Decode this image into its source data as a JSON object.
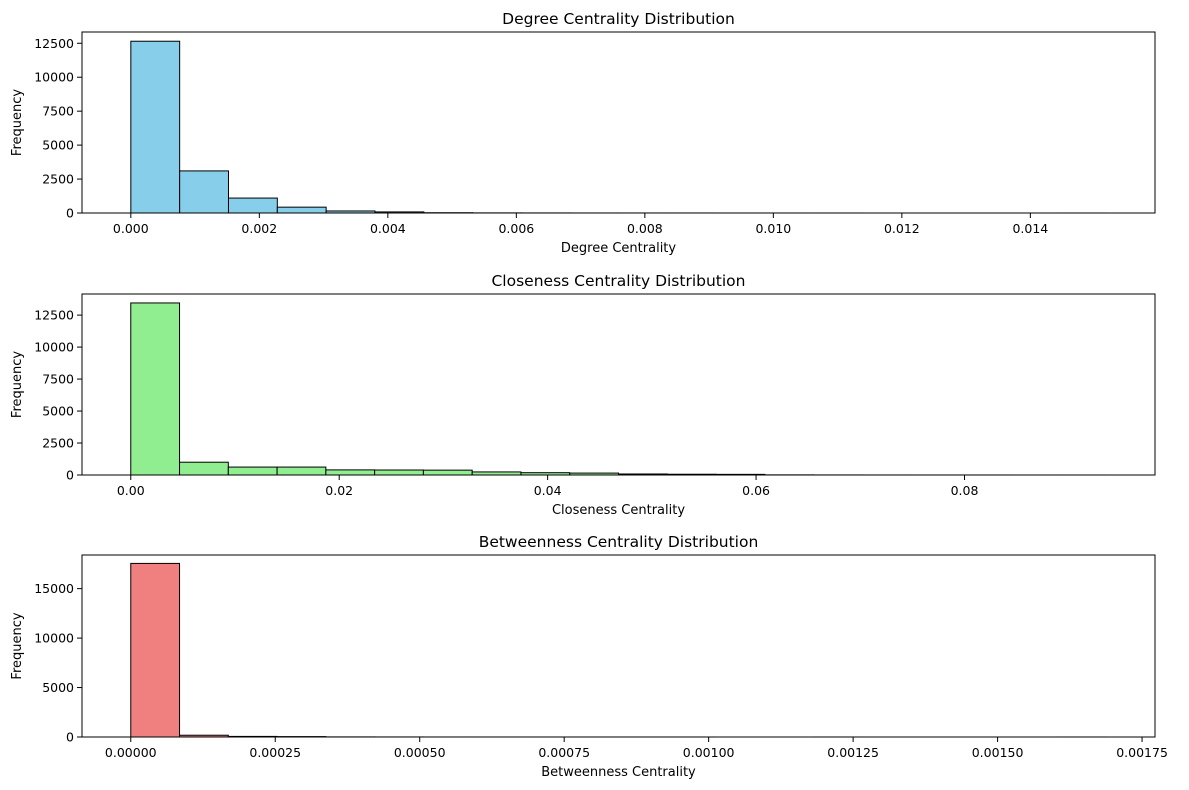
{
  "chart_data": [
    {
      "type": "bar",
      "title": "Degree Centrality Distribution",
      "xlabel": "Degree Centrality",
      "ylabel": "Frequency",
      "color": "#87ceeb",
      "edge_color": "#000000",
      "xlim": [
        -0.00076,
        0.01594
      ],
      "ylim": [
        0,
        13330
      ],
      "xticks": [
        0,
        0.002,
        0.004,
        0.006,
        0.008,
        0.01,
        0.012,
        0.014
      ],
      "xtick_labels": [
        "0.000",
        "0.002",
        "0.004",
        "0.006",
        "0.008",
        "0.010",
        "0.012",
        "0.014"
      ],
      "yticks": [
        0,
        2500,
        5000,
        7500,
        10000,
        12500
      ],
      "ytick_labels": [
        "0",
        "2500",
        "5000",
        "7500",
        "10000",
        "12500"
      ],
      "bin_edges": [
        0,
        0.00076,
        0.00152,
        0.00228,
        0.00304,
        0.0038,
        0.00456,
        0.00532,
        0.00608,
        0.00684,
        0.0076,
        0.00836,
        0.00912,
        0.00988,
        0.01064,
        0.0114,
        0.01216,
        0.01292,
        0.01368,
        0.01444,
        0.0152
      ],
      "values": [
        12650,
        3100,
        1100,
        430,
        150,
        80,
        20,
        8,
        5,
        3,
        2,
        2,
        1,
        1,
        1,
        0,
        0,
        0,
        0,
        1
      ],
      "grid": false,
      "legend": false
    },
    {
      "type": "bar",
      "title": "Closeness Centrality Distribution",
      "xlabel": "Closeness Centrality",
      "ylabel": "Frequency",
      "color": "#90ee90",
      "edge_color": "#000000",
      "xlim": [
        -0.00468,
        0.09828
      ],
      "ylim": [
        0,
        14150
      ],
      "xticks": [
        0,
        0.02,
        0.04,
        0.06,
        0.08
      ],
      "xtick_labels": [
        "0.00",
        "0.02",
        "0.04",
        "0.06",
        "0.08"
      ],
      "yticks": [
        0,
        2500,
        5000,
        7500,
        10000,
        12500
      ],
      "ytick_labels": [
        "0",
        "2500",
        "5000",
        "7500",
        "10000",
        "12500"
      ],
      "bin_edges": [
        0,
        0.00468,
        0.00936,
        0.01404,
        0.01872,
        0.0234,
        0.02808,
        0.03276,
        0.03744,
        0.04212,
        0.0468,
        0.05148,
        0.05616,
        0.06084,
        0.06552,
        0.0702,
        0.07488,
        0.07956,
        0.08424,
        0.08892,
        0.0936
      ],
      "values": [
        13450,
        1000,
        620,
        620,
        400,
        390,
        380,
        240,
        180,
        150,
        80,
        60,
        50,
        10,
        5,
        3,
        2,
        2,
        1,
        1
      ],
      "grid": false,
      "legend": false
    },
    {
      "type": "bar",
      "title": "Betweenness Centrality Distribution",
      "xlabel": "Betweenness Centrality",
      "ylabel": "Frequency",
      "color": "#f08080",
      "edge_color": "#000000",
      "xlim": [
        -8.44e-05,
        0.0017724
      ],
      "ylim": [
        0,
        18400
      ],
      "xticks": [
        0,
        0.00025,
        0.0005,
        0.00075,
        0.001,
        0.00125,
        0.0015,
        0.00175
      ],
      "xtick_labels": [
        "0.00000",
        "0.00025",
        "0.00050",
        "0.00075",
        "0.00100",
        "0.00125",
        "0.00150",
        "0.00175"
      ],
      "yticks": [
        0,
        5000,
        10000,
        15000
      ],
      "ytick_labels": [
        "0",
        "5000",
        "10000",
        "15000"
      ],
      "bin_edges": [
        0,
        8.44e-05,
        0.0001688,
        0.0002532,
        0.0003376,
        0.000422,
        0.0005064,
        0.0005908,
        0.0006752,
        0.0007596,
        0.000844,
        0.0009284,
        0.0010128,
        0.0010972,
        0.0011816,
        0.001266,
        0.0013504,
        0.0014348,
        0.0015192,
        0.0016036,
        0.001688
      ],
      "values": [
        17550,
        180,
        60,
        40,
        10,
        5,
        3,
        2,
        1,
        1,
        1,
        1,
        0,
        0,
        1,
        0,
        0,
        0,
        0,
        1
      ],
      "grid": false,
      "legend": false
    }
  ]
}
